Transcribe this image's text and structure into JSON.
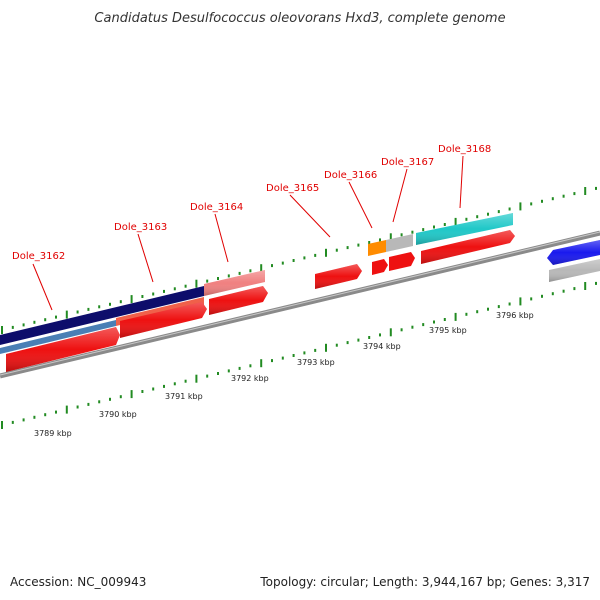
{
  "title": "Candidatus Desulfococcus oleovorans Hxd3, complete genome",
  "accession": "Accession: NC_009943",
  "summary": "Topology: circular; Length: 3,944,167 bp; Genes: 3,317",
  "gene_labels": [
    "Dole_3162",
    "Dole_3163",
    "Dole_3164",
    "Dole_3165",
    "Dole_3166",
    "Dole_3167",
    "Dole_3168"
  ],
  "kbp_labels": [
    "3789 kbp",
    "3790 kbp",
    "3791 kbp",
    "3792 kbp",
    "3793 kbp",
    "3794 kbp",
    "3795 kbp",
    "3796 kbp"
  ],
  "colors": {
    "gene_red": "#ee1111",
    "gene_pink": "#f08080",
    "gene_salmon": "#f0604a",
    "navy": "#0d0d6b",
    "steel_blue": "#4a7fb5",
    "cyan": "#20c8c8",
    "orange": "#ff8c00",
    "gray": "#b8b8b8",
    "blue": "#1a1aee",
    "tick_green": "#228b22",
    "backbone": "#8a8a8a",
    "label_red": "#e00000"
  }
}
